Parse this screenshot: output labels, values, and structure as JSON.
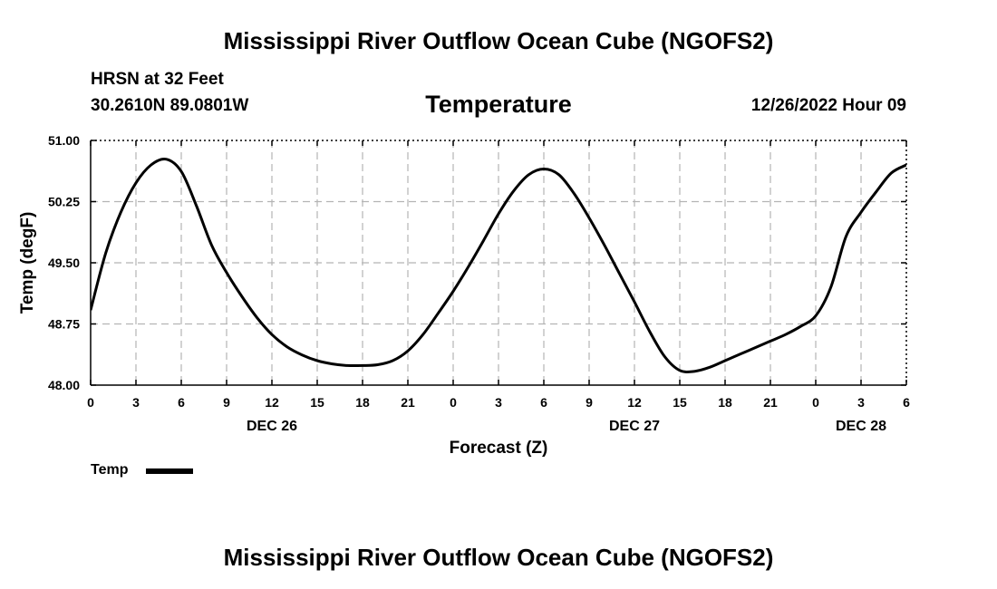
{
  "header": {
    "title": "Mississippi River Outflow Ocean Cube (NGOFS2)",
    "station": "HRSN at 32 Feet",
    "coordinates": "30.2610N  89.0801W",
    "datetime": "12/26/2022 Hour 09"
  },
  "footer": {
    "title": "Mississippi River Outflow Ocean Cube (NGOFS2)"
  },
  "legend": {
    "label": "Temp"
  },
  "chart_data": {
    "type": "line",
    "title": "Temperature",
    "xlabel": "Forecast (Z)",
    "ylabel": "Temp (degF)",
    "xlim": [
      0,
      54
    ],
    "ylim": [
      48.0,
      51.0
    ],
    "grid": true,
    "legend_position": "bottom-left",
    "x_ticks": [
      0,
      3,
      6,
      9,
      12,
      15,
      18,
      21,
      24,
      27,
      30,
      33,
      36,
      39,
      42,
      45,
      48,
      51,
      54
    ],
    "x_tick_labels": [
      "0",
      "3",
      "6",
      "9",
      "12",
      "15",
      "18",
      "21",
      "0",
      "3",
      "6",
      "9",
      "12",
      "15",
      "18",
      "21",
      "0",
      "3",
      "6"
    ],
    "y_ticks": [
      48.0,
      48.75,
      49.5,
      50.25,
      51.0
    ],
    "y_tick_labels": [
      "48.00",
      "48.75",
      "49.50",
      "50.25",
      "51.00"
    ],
    "day_labels": [
      {
        "x": 12,
        "label": "DEC 26"
      },
      {
        "x": 36,
        "label": "DEC 27"
      },
      {
        "x": 51,
        "label": "DEC 28"
      }
    ],
    "series": [
      {
        "name": "Temp",
        "color": "#000000",
        "x": [
          0,
          1,
          2,
          3,
          4,
          5,
          6,
          7,
          8,
          9,
          10,
          11,
          12,
          13,
          14,
          15,
          16,
          17,
          18,
          19,
          20,
          21,
          22,
          23,
          24,
          25,
          26,
          27,
          28,
          29,
          30,
          31,
          32,
          33,
          34,
          35,
          36,
          37,
          38,
          39,
          40,
          41,
          42,
          43,
          44,
          45,
          46,
          47,
          48,
          49,
          50,
          51,
          52,
          53,
          54
        ],
        "values": [
          48.92,
          49.62,
          50.12,
          50.48,
          50.7,
          50.77,
          50.62,
          50.2,
          49.72,
          49.38,
          49.09,
          48.83,
          48.62,
          48.47,
          48.37,
          48.3,
          48.26,
          48.24,
          48.24,
          48.25,
          48.3,
          48.42,
          48.62,
          48.88,
          49.15,
          49.45,
          49.77,
          50.1,
          50.38,
          50.58,
          50.65,
          50.58,
          50.35,
          50.05,
          49.72,
          49.37,
          49.02,
          48.66,
          48.35,
          48.18,
          48.17,
          48.22,
          48.3,
          48.38,
          48.46,
          48.54,
          48.62,
          48.72,
          48.85,
          49.2,
          49.82,
          50.12,
          50.37,
          50.6,
          50.7
        ]
      }
    ]
  }
}
